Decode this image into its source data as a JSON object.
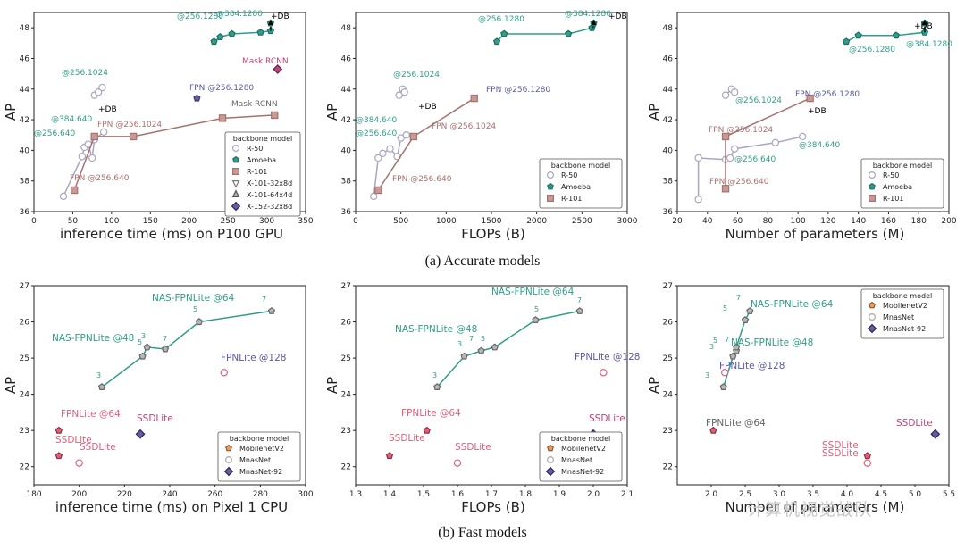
{
  "captions": {
    "top": "(a) Accurate models",
    "bottom": "(b) Fast models"
  },
  "watermark": "计算机视觉战队",
  "colors": {
    "resnet": "#a9a7be",
    "amoeba": "#2f9e8a",
    "amoeba_dark": "#1e6e60",
    "r101": "#a67270",
    "r101_fill": "#c79a95",
    "resnext": "#6b5aa3",
    "mask": "#b9457a",
    "mobilenet": "#e0607a",
    "mnas": "#2f9e8a",
    "mnasnet92": "#6b5aa3",
    "db": "#000000"
  },
  "chart_data": [
    {
      "id": "a1",
      "type": "scatter",
      "xlabel": "inference time (ms) on P100 GPU",
      "ylabel": "AP",
      "xlim": [
        0,
        350
      ],
      "ylim": [
        36,
        49
      ],
      "xticks": [
        "0",
        "50",
        "100",
        "150",
        "200",
        "250",
        "300",
        "350"
      ],
      "yticks": [
        "36",
        "38",
        "40",
        "42",
        "44",
        "46",
        "48"
      ],
      "legend_title": "backbone model",
      "legend_position": "center-right",
      "legend": [
        "R-50",
        "Amoeba",
        "R-101",
        "X-101-32x8d",
        "X-101-64x4d",
        "X-152-32x8d"
      ],
      "series": [
        {
          "name": "R-50",
          "points": [
            [
              38,
              37.0
            ],
            [
              62,
              39.6
            ],
            [
              65,
              40.2
            ],
            [
              70,
              40.4
            ],
            [
              75,
              39.5
            ],
            [
              78,
              40.7
            ],
            [
              90,
              41.2
            ]
          ]
        },
        {
          "name": "R-50 @256.1024",
          "points": [
            [
              78,
              43.6
            ],
            [
              83,
              43.8
            ],
            [
              88,
              44.1
            ]
          ]
        },
        {
          "name": "R-101",
          "points": [
            [
              52,
              37.4
            ],
            [
              78,
              40.9
            ],
            [
              128,
              40.9
            ],
            [
              243,
              42.1
            ],
            [
              310,
              42.3
            ]
          ]
        },
        {
          "name": "Amoeba",
          "points": [
            [
              232,
              47.1
            ],
            [
              240,
              47.4
            ],
            [
              255,
              47.6
            ],
            [
              292,
              47.7
            ],
            [
              305,
              47.8
            ],
            [
              305,
              48.3
            ]
          ]
        },
        {
          "name": "X-101",
          "points": [
            [
              210,
              43.4
            ]
          ]
        },
        {
          "name": "X-152",
          "points": [
            [
              314,
              45.3
            ]
          ]
        }
      ],
      "annotations": [
        "@256.1280",
        "@384.1280",
        "+DB",
        "Mask RCNN",
        "FPN @256.1280",
        "Mask RCNN",
        "@256.1024",
        "@384.640",
        "FPN @256.1024",
        "@256.640",
        "FPN @256.640",
        "+DB"
      ]
    },
    {
      "id": "a2",
      "type": "scatter",
      "xlabel": "FLOPs (B)",
      "ylabel": "AP",
      "xlim": [
        0,
        3000
      ],
      "ylim": [
        36,
        49
      ],
      "xticks": [
        "0",
        "500",
        "1000",
        "1500",
        "2000",
        "2500",
        "3000"
      ],
      "yticks": [
        "36",
        "38",
        "40",
        "42",
        "44",
        "46",
        "48"
      ],
      "legend_title": "backbone model",
      "legend_position": "lower-right",
      "legend": [
        "R-50",
        "Amoeba",
        "R-101"
      ],
      "series": [
        {
          "name": "R-50",
          "points": [
            [
              200,
              37.0
            ],
            [
              250,
              39.5
            ],
            [
              300,
              39.8
            ],
            [
              380,
              40.1
            ],
            [
              460,
              39.6
            ],
            [
              500,
              40.8
            ],
            [
              560,
              41.0
            ]
          ]
        },
        {
          "name": "R-50 @256.1024",
          "points": [
            [
              480,
              43.6
            ],
            [
              520,
              44.0
            ],
            [
              540,
              43.8
            ]
          ]
        },
        {
          "name": "R-101",
          "points": [
            [
              250,
              37.4
            ],
            [
              640,
              40.9
            ],
            [
              1310,
              43.4
            ]
          ]
        },
        {
          "name": "Amoeba",
          "points": [
            [
              1560,
              47.1
            ],
            [
              1640,
              47.6
            ],
            [
              2350,
              47.6
            ],
            [
              2610,
              48.0
            ],
            [
              2630,
              48.3
            ]
          ]
        }
      ],
      "annotations": [
        "@256.1280",
        "@384.1280",
        "+DB",
        "@256.1024",
        "FPN @256.1280",
        "+DB",
        "@384.640",
        "@256.640",
        "FPN @256.1024",
        "FPN @256.640"
      ]
    },
    {
      "id": "a3",
      "type": "scatter",
      "xlabel": "Number of parameters (M)",
      "ylabel": "AP",
      "xlim": [
        20,
        200
      ],
      "ylim": [
        36,
        49
      ],
      "xticks": [
        "20",
        "40",
        "60",
        "80",
        "100",
        "120",
        "140",
        "160",
        "180",
        "200"
      ],
      "yticks": [
        "36",
        "38",
        "40",
        "42",
        "44",
        "46",
        "48"
      ],
      "legend_title": "backbone model",
      "legend_position": "lower-right",
      "legend": [
        "R-50",
        "Amoeba",
        "R-101"
      ],
      "series": [
        {
          "name": "R-50",
          "points": [
            [
              34,
              36.8
            ],
            [
              34,
              39.5
            ],
            [
              52,
              39.4
            ],
            [
              55,
              39.5
            ],
            [
              58,
              40.1
            ],
            [
              85,
              40.5
            ],
            [
              103,
              40.9
            ]
          ]
        },
        {
          "name": "R-50 @256.1024",
          "points": [
            [
              52,
              43.6
            ],
            [
              56,
              44.0
            ],
            [
              58,
              43.8
            ]
          ]
        },
        {
          "name": "R-101",
          "points": [
            [
              52,
              37.5
            ],
            [
              52,
              40.9
            ],
            [
              108,
              43.4
            ]
          ]
        },
        {
          "name": "Amoeba",
          "points": [
            [
              132,
              47.1
            ],
            [
              140,
              47.5
            ],
            [
              165,
              47.5
            ],
            [
              184,
              47.7
            ],
            [
              184,
              48.3
            ]
          ]
        }
      ],
      "annotations": [
        "+DB",
        "@384.1280",
        "@256.1280",
        "@256.1024",
        "FPN @256.1280",
        "+DB",
        "FPN @256.1024",
        "@384.640",
        "@256.640",
        "FPN @256.640"
      ]
    },
    {
      "id": "b1",
      "type": "scatter",
      "xlabel": "inference time (ms) on Pixel 1 CPU",
      "ylabel": "AP",
      "xlim": [
        180,
        300
      ],
      "ylim": [
        21.5,
        27
      ],
      "xticks": [
        "180",
        "200",
        "220",
        "240",
        "260",
        "280",
        "300"
      ],
      "yticks": [
        "22",
        "23",
        "24",
        "25",
        "26",
        "27"
      ],
      "legend_title": "backbone model",
      "legend_position": "lower-right",
      "legend": [
        "MobilenetV2",
        "MnasNet",
        "MnasNet-92"
      ],
      "series": [
        {
          "name": "NAS-FPNLite",
          "points": [
            [
              210,
              24.2
            ],
            [
              228,
              25.05
            ],
            [
              230,
              25.3
            ],
            [
              238,
              25.25
            ],
            [
              253,
              26.0
            ],
            [
              285,
              26.3
            ]
          ]
        },
        {
          "name": "MobilenetV2",
          "points": [
            [
              191,
              23.0
            ],
            [
              191,
              22.3
            ]
          ]
        },
        {
          "name": "MnasNet",
          "points": [
            [
              200,
              22.1
            ],
            [
              264,
              24.6
            ]
          ]
        },
        {
          "name": "MnasNet-92",
          "points": [
            [
              227,
              22.9
            ]
          ]
        }
      ],
      "annotations": [
        "NAS-FPNLite @64",
        "NAS-FPNLite @48",
        "FPNLite @128",
        "FPNLite @64",
        "SSDLite",
        "SSDLite",
        "SSDLite",
        "3",
        "3",
        "5",
        "5",
        "7",
        "7"
      ]
    },
    {
      "id": "b2",
      "type": "scatter",
      "xlabel": "FLOPs (B)",
      "ylabel": "AP",
      "xlim": [
        1.3,
        2.1
      ],
      "ylim": [
        21.5,
        27
      ],
      "xticks": [
        "1.3",
        "1.4",
        "1.5",
        "1.6",
        "1.7",
        "1.8",
        "1.9",
        "2.0",
        "2.1"
      ],
      "yticks": [
        "22",
        "23",
        "24",
        "25",
        "26",
        "27"
      ],
      "legend_title": "backbone model",
      "legend_position": "lower-right",
      "legend": [
        "MobilenetV2",
        "MnasNet",
        "MnasNet-92"
      ],
      "series": [
        {
          "name": "NAS-FPNLite",
          "points": [
            [
              1.54,
              24.2
            ],
            [
              1.62,
              25.05
            ],
            [
              1.67,
              25.2
            ],
            [
              1.71,
              25.3
            ],
            [
              1.83,
              26.05
            ],
            [
              1.96,
              26.3
            ]
          ]
        },
        {
          "name": "MobilenetV2",
          "points": [
            [
              1.51,
              23.0
            ],
            [
              1.4,
              22.3
            ]
          ]
        },
        {
          "name": "MnasNet",
          "points": [
            [
              1.6,
              22.1
            ],
            [
              2.03,
              24.6
            ]
          ]
        },
        {
          "name": "MnasNet-92",
          "points": [
            [
              2.0,
              22.9
            ]
          ]
        }
      ],
      "annotations": [
        "NAS-FPNLite @64",
        "NAS-FPNLite @48",
        "FPNLite @128",
        "FPNLite @64",
        "SSDLite",
        "SSDLite",
        "SSDLite",
        "3",
        "3",
        "5",
        "5",
        "7",
        "7"
      ]
    },
    {
      "id": "b3",
      "type": "scatter",
      "xlabel": "Number of parameters (M)",
      "ylabel": "AP",
      "xlim": [
        1.5,
        5.5
      ],
      "ylim": [
        21.5,
        27
      ],
      "xticks": [
        "2.0",
        "2.5",
        "3.0",
        "3.5",
        "4.0",
        "4.5",
        "5.0",
        "5.5"
      ],
      "yticks": [
        "22",
        "23",
        "24",
        "25",
        "26",
        "27"
      ],
      "legend_title": "backbone model",
      "legend_position": "upper-right",
      "legend": [
        "MobilenetV2",
        "MnasNet",
        "MnasNet-92"
      ],
      "series": [
        {
          "name": "NAS-FPNLite",
          "points": [
            [
              2.18,
              24.2
            ],
            [
              2.32,
              25.05
            ],
            [
              2.37,
              25.2
            ],
            [
              2.37,
              25.3
            ],
            [
              2.5,
              26.05
            ],
            [
              2.57,
              26.3
            ]
          ]
        },
        {
          "name": "MobilenetV2",
          "points": [
            [
              2.03,
              23.0
            ],
            [
              4.3,
              22.3
            ]
          ]
        },
        {
          "name": "MnasNet",
          "points": [
            [
              4.3,
              22.1
            ],
            [
              2.2,
              24.6
            ]
          ]
        },
        {
          "name": "MnasNet-92",
          "points": [
            [
              5.3,
              22.9
            ]
          ]
        }
      ],
      "annotations": [
        "NAS-FPNLite @64",
        "NAS-FPNLite @48",
        "FPNLite @128",
        "FPNLite @64",
        "SSDLite",
        "SSDLite",
        "SSDLite",
        "3",
        "3",
        "5",
        "5",
        "7",
        "7"
      ]
    }
  ]
}
